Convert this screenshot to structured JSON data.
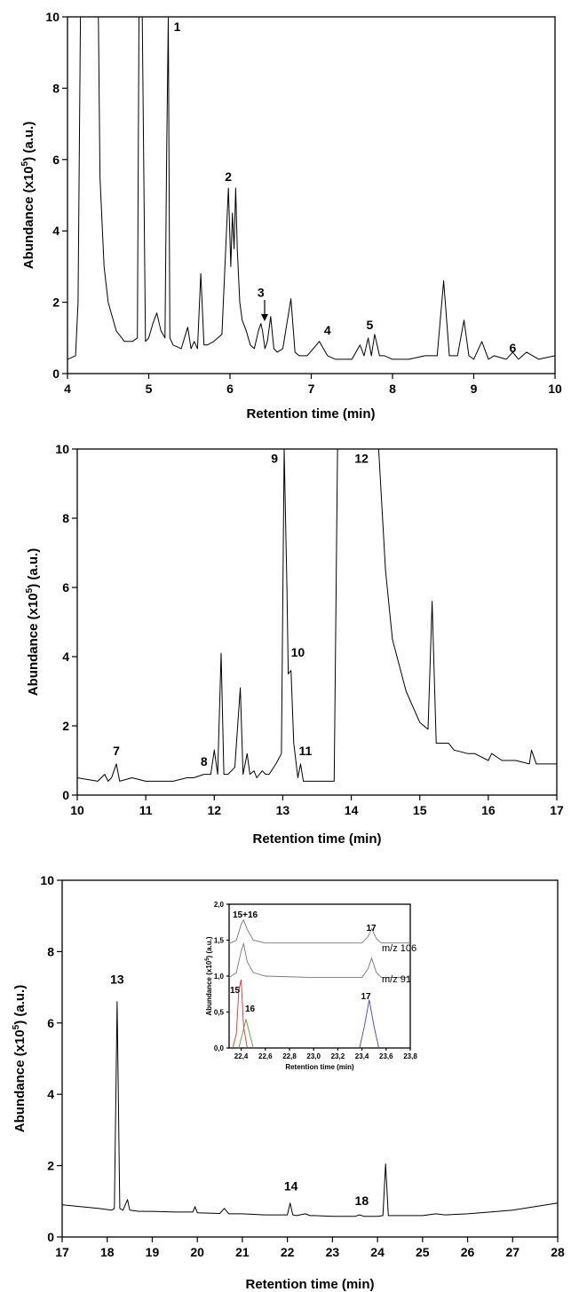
{
  "chart_data": [
    {
      "type": "line",
      "xlabel": "Retention time (min)",
      "ylabel_main": "Abundance (x10",
      "ylabel_sup": "5",
      "ylabel_tail": ") (a.u.)",
      "xlim": [
        4,
        10
      ],
      "ylim": [
        0,
        10
      ],
      "xticks": [
        4,
        5,
        6,
        7,
        8,
        9,
        10
      ],
      "yticks": [
        0,
        2,
        4,
        6,
        8,
        10
      ],
      "series": [
        {
          "x": [
            4.0,
            4.1,
            4.13,
            4.16,
            4.2,
            4.3,
            4.38,
            4.4,
            4.45,
            4.5,
            4.6,
            4.7,
            4.8,
            4.86,
            4.88,
            4.92,
            4.96,
            5.0,
            5.05,
            5.1,
            5.15,
            5.2,
            5.22,
            5.24,
            5.26,
            5.3,
            5.4,
            5.48,
            5.52,
            5.56,
            5.6,
            5.64,
            5.68,
            5.72,
            5.8,
            5.9,
            5.98,
            6.01,
            6.03,
            6.05,
            6.07,
            6.09,
            6.12,
            6.15,
            6.2,
            6.25,
            6.3,
            6.35,
            6.38,
            6.4,
            6.43,
            6.46,
            6.5,
            6.54,
            6.58,
            6.65,
            6.75,
            6.8,
            6.85,
            6.95,
            7.1,
            7.2,
            7.3,
            7.5,
            7.6,
            7.65,
            7.7,
            7.74,
            7.78,
            7.84,
            7.9,
            8.0,
            8.2,
            8.4,
            8.55,
            8.63,
            8.7,
            8.8,
            8.88,
            8.94,
            9.0,
            9.1,
            9.18,
            9.25,
            9.4,
            9.48,
            9.55,
            9.65,
            9.8,
            10.0
          ],
          "y": [
            0.4,
            0.5,
            2.0,
            10.0,
            10.0,
            10.0,
            10.0,
            5.5,
            3.0,
            2.0,
            1.2,
            0.9,
            0.9,
            1.0,
            10.0,
            10.0,
            0.9,
            1.0,
            1.4,
            1.7,
            1.2,
            1.0,
            6.0,
            10.0,
            1.0,
            0.8,
            0.7,
            1.3,
            0.7,
            0.9,
            0.7,
            2.8,
            0.8,
            0.8,
            0.9,
            1.1,
            5.2,
            3.0,
            4.5,
            3.5,
            5.2,
            3.5,
            2.0,
            1.5,
            1.2,
            0.8,
            0.7,
            1.2,
            1.4,
            1.2,
            0.7,
            0.9,
            1.6,
            0.7,
            0.6,
            0.7,
            2.1,
            0.6,
            0.5,
            0.5,
            0.9,
            0.5,
            0.4,
            0.4,
            0.8,
            0.5,
            1.0,
            0.5,
            1.1,
            0.5,
            0.5,
            0.4,
            0.4,
            0.5,
            0.5,
            2.6,
            0.5,
            0.5,
            1.5,
            0.5,
            0.4,
            0.9,
            0.4,
            0.5,
            0.4,
            0.6,
            0.4,
            0.6,
            0.4,
            0.5
          ]
        }
      ],
      "labels": [
        {
          "text": "1",
          "x": 5.35,
          "y": 9.6
        },
        {
          "text": "2",
          "x": 5.98,
          "y": 5.4
        },
        {
          "text": "3",
          "x": 6.38,
          "y": 2.15
        },
        {
          "text": "4",
          "x": 7.2,
          "y": 1.1
        },
        {
          "text": "5",
          "x": 7.72,
          "y": 1.25
        },
        {
          "text": "6",
          "x": 9.48,
          "y": 0.6
        }
      ]
    },
    {
      "type": "line",
      "xlabel": "Retention time (min)",
      "ylabel_main": "Abundance (x10",
      "ylabel_sup": "5",
      "ylabel_tail": ") (a.u.)",
      "xlim": [
        10,
        17
      ],
      "ylim": [
        0,
        10
      ],
      "xticks": [
        10,
        11,
        12,
        13,
        14,
        15,
        16,
        17
      ],
      "yticks": [
        0,
        2,
        4,
        6,
        8,
        10
      ],
      "series": [
        {
          "x": [
            10.0,
            10.3,
            10.4,
            10.45,
            10.5,
            10.57,
            10.62,
            10.8,
            11.0,
            11.4,
            11.6,
            11.7,
            11.85,
            11.95,
            12.0,
            12.05,
            12.1,
            12.14,
            12.2,
            12.3,
            12.38,
            12.42,
            12.48,
            12.52,
            12.58,
            12.62,
            12.7,
            12.75,
            12.8,
            12.9,
            12.98,
            13.02,
            13.06,
            13.08,
            13.12,
            13.16,
            13.22,
            13.26,
            13.3,
            13.5,
            13.75,
            13.8,
            13.85,
            14.0,
            14.15,
            14.3,
            14.4,
            14.5,
            14.6,
            14.8,
            15.0,
            15.12,
            15.18,
            15.24,
            15.35,
            15.42,
            15.5,
            15.7,
            15.8,
            16.0,
            16.05,
            16.2,
            16.4,
            16.6,
            16.63,
            16.7,
            17.0
          ],
          "y": [
            0.5,
            0.4,
            0.6,
            0.4,
            0.5,
            0.9,
            0.4,
            0.5,
            0.4,
            0.4,
            0.5,
            0.5,
            0.6,
            0.6,
            1.3,
            0.6,
            4.1,
            0.6,
            0.6,
            0.8,
            3.1,
            0.6,
            1.2,
            0.6,
            0.7,
            0.5,
            0.7,
            0.6,
            0.6,
            0.9,
            1.2,
            10.0,
            6.0,
            3.5,
            3.6,
            1.5,
            0.5,
            0.9,
            0.4,
            0.4,
            0.4,
            10.0,
            10.0,
            10.0,
            10.0,
            10.0,
            10.0,
            6.5,
            4.5,
            3.0,
            2.1,
            1.9,
            5.6,
            1.5,
            1.5,
            1.5,
            1.3,
            1.2,
            1.2,
            1.0,
            1.2,
            1.0,
            1.0,
            0.9,
            1.3,
            0.9,
            0.9
          ]
        }
      ],
      "labels": [
        {
          "text": "7",
          "x": 10.57,
          "y": 1.15
        },
        {
          "text": "8",
          "x": 11.85,
          "y": 0.85
        },
        {
          "text": "9",
          "x": 12.88,
          "y": 9.6
        },
        {
          "text": "10",
          "x": 13.22,
          "y": 4.0
        },
        {
          "text": "11",
          "x": 13.33,
          "y": 1.15
        },
        {
          "text": "12",
          "x": 14.15,
          "y": 9.6
        }
      ]
    },
    {
      "type": "line",
      "xlabel": "Retention time (min)",
      "ylabel_main": "Abundance (x10",
      "ylabel_sup": "5",
      "ylabel_tail": ") (a.u.)",
      "xlim": [
        17,
        28
      ],
      "ylim": [
        0,
        10
      ],
      "xticks": [
        17,
        18,
        19,
        20,
        21,
        22,
        23,
        24,
        25,
        26,
        27,
        28
      ],
      "yticks": [
        0,
        2,
        4,
        6,
        8,
        10
      ],
      "series": [
        {
          "x": [
            17.0,
            17.4,
            17.8,
            18.1,
            18.16,
            18.22,
            18.28,
            18.35,
            18.45,
            18.5,
            18.7,
            19.0,
            19.5,
            19.9,
            19.95,
            20.0,
            20.5,
            20.6,
            20.7,
            21.0,
            21.5,
            22.0,
            22.06,
            22.12,
            22.2,
            22.4,
            22.5,
            22.6,
            23.0,
            23.5,
            23.6,
            23.7,
            24.0,
            24.12,
            24.18,
            24.24,
            24.35,
            25.0,
            25.3,
            25.5,
            26.0,
            26.5,
            27.0,
            27.5,
            28.0
          ],
          "y": [
            0.9,
            0.85,
            0.8,
            0.75,
            0.8,
            6.6,
            0.8,
            0.75,
            1.05,
            0.75,
            0.72,
            0.72,
            0.7,
            0.7,
            0.85,
            0.68,
            0.66,
            0.8,
            0.65,
            0.65,
            0.62,
            0.62,
            0.95,
            0.62,
            0.6,
            0.65,
            0.6,
            0.6,
            0.58,
            0.58,
            0.62,
            0.58,
            0.58,
            0.6,
            2.05,
            0.6,
            0.6,
            0.6,
            0.65,
            0.62,
            0.65,
            0.7,
            0.75,
            0.85,
            0.95
          ]
        }
      ],
      "labels": [
        {
          "text": "13",
          "x": 18.22,
          "y": 7.1
        },
        {
          "text": "14",
          "x": 22.08,
          "y": 1.3
        },
        {
          "text": "18",
          "x": 23.65,
          "y": 0.9
        }
      ]
    },
    {
      "type": "line",
      "xlabel": "Retention time (min)",
      "ylabel_main": "Abundance (x10",
      "ylabel_sup": "5",
      "ylabel_tail": ") (a.u.)",
      "xlim": [
        22.3,
        23.8
      ],
      "ylim": [
        0.0,
        2.0
      ],
      "xticks": [
        "22,4",
        "22,6",
        "22,8",
        "23,0",
        "23,2",
        "23,4",
        "23,6",
        "23,8"
      ],
      "xtick_values": [
        22.4,
        22.6,
        22.8,
        23.0,
        23.2,
        23.4,
        23.6,
        23.8
      ],
      "yticks": [
        "0,0",
        "0,5",
        "1,0",
        "1,5",
        "2,0"
      ],
      "ytick_values": [
        0.0,
        0.5,
        1.0,
        1.5,
        2.0
      ],
      "series": [
        {
          "name": "m/z 106",
          "color": "#777777",
          "x": [
            22.3,
            22.36,
            22.4,
            22.42,
            22.45,
            22.5,
            22.6,
            23.0,
            23.4,
            23.45,
            23.48,
            23.52,
            23.56,
            23.8
          ],
          "y": [
            1.45,
            1.5,
            1.72,
            1.78,
            1.65,
            1.5,
            1.46,
            1.46,
            1.46,
            1.55,
            1.66,
            1.52,
            1.46,
            1.46
          ]
        },
        {
          "name": "m/z 91",
          "color": "#777777",
          "x": [
            22.3,
            22.36,
            22.4,
            22.42,
            22.45,
            22.5,
            22.6,
            23.0,
            23.4,
            23.45,
            23.48,
            23.52,
            23.56,
            23.8
          ],
          "y": [
            0.98,
            1.05,
            1.35,
            1.45,
            1.2,
            1.05,
            1.0,
            0.98,
            0.98,
            1.1,
            1.25,
            1.05,
            0.98,
            0.98
          ]
        },
        {
          "name": "15",
          "color": "#e03030",
          "x": [
            22.33,
            22.36,
            22.38,
            22.4,
            22.42,
            22.45
          ],
          "y": [
            0.0,
            0.2,
            0.8,
            0.95,
            0.3,
            0.0
          ]
        },
        {
          "name": "16",
          "color": "#5a9a3a",
          "x": [
            22.38,
            22.41,
            22.44,
            22.47,
            22.5
          ],
          "y": [
            0.0,
            0.2,
            0.4,
            0.2,
            0.0
          ]
        },
        {
          "name": "17",
          "color": "#4040c0",
          "x": [
            23.38,
            23.42,
            23.46,
            23.5,
            23.54
          ],
          "y": [
            0.0,
            0.3,
            0.67,
            0.3,
            0.0
          ]
        }
      ]
    }
  ],
  "inset": {
    "xlabel": "Retention time (min)",
    "ylabel_main": "Abundance (x10",
    "ylabel_sup": "5",
    "ylabel_tail": ") (a.u.)",
    "labels": {
      "p1516": "15+16",
      "p17a": "17",
      "mz106": "m/z 106",
      "mz91": "m/z 91",
      "p15": "15",
      "p16": "16",
      "p17b": "17"
    }
  }
}
